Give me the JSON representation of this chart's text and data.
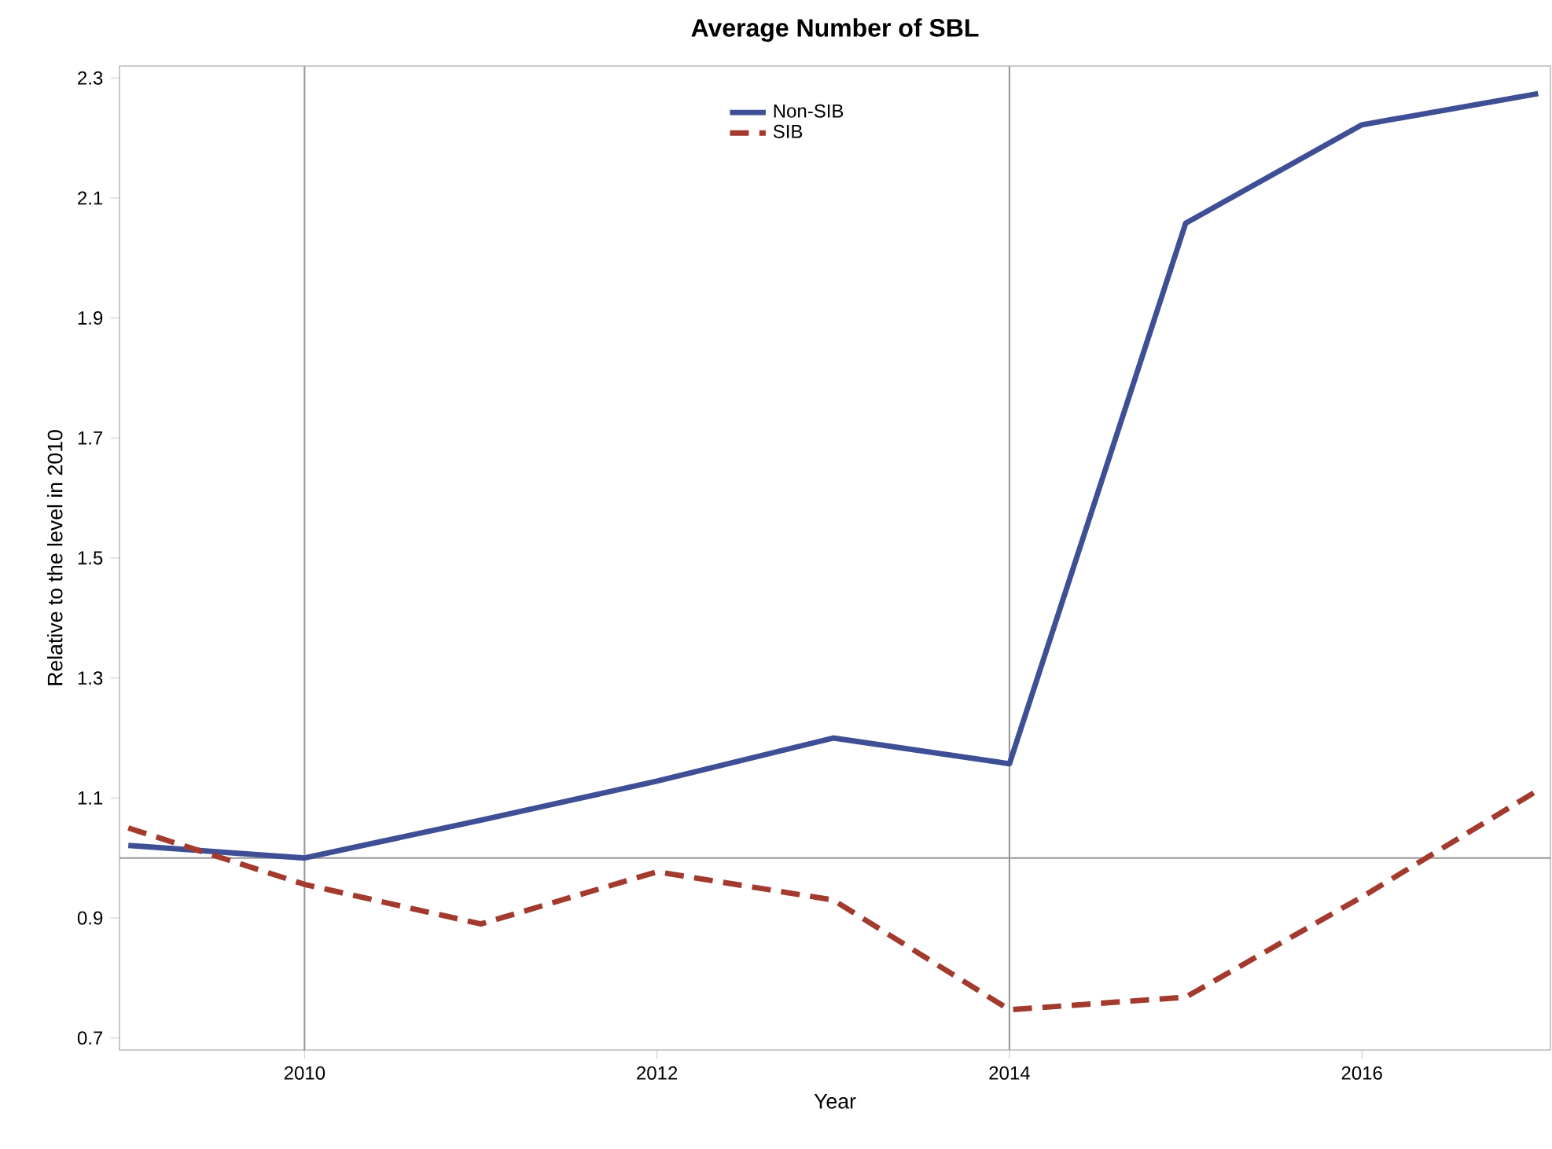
{
  "chart_data": {
    "type": "line",
    "title": "Average Number of SBL",
    "xlabel": "Year",
    "ylabel": "Relative to the level in 2010",
    "x": [
      2009,
      2010,
      2011,
      2012,
      2013,
      2014,
      2015,
      2016,
      2017
    ],
    "series": [
      {
        "name": "Non-SIB",
        "color": "#3f4f96",
        "line_style": "solid",
        "values": [
          1.021,
          1.0,
          1.063,
          1.128,
          1.2,
          1.157,
          2.058,
          2.222,
          2.274
        ]
      },
      {
        "name": "SIB",
        "color": "#a33a2e",
        "line_style": "dashed",
        "values": [
          1.05,
          0.956,
          0.89,
          0.977,
          0.93,
          0.747,
          0.768,
          0.935,
          1.113
        ]
      }
    ],
    "xlim": [
      2008.95,
      2017.07
    ],
    "ylim": [
      0.68,
      2.32
    ],
    "xticks": [
      2010,
      2012,
      2014,
      2016
    ],
    "yticks": [
      0.7,
      0.9,
      1.1,
      1.3,
      1.5,
      1.7,
      1.9,
      2.1,
      2.3
    ],
    "ref_lines": [
      {
        "axis": "x",
        "value": 2010
      },
      {
        "axis": "x",
        "value": 2014
      },
      {
        "axis": "y",
        "value": 1.0
      }
    ],
    "grid": false,
    "legend": "top"
  }
}
